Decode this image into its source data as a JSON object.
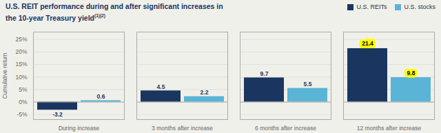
{
  "chart_data": {
    "type": "bar",
    "title": "U.S. REIT performance during and after significant increases in the 10-year Treasury yield",
    "annotations": [
      "(1)(2)"
    ],
    "categories": [
      "During increase",
      "3 months after increase",
      "6 months after increase",
      "12 months after increase"
    ],
    "series": [
      {
        "name": "U.S. REITs",
        "color": "#1a3560",
        "values": [
          -3.2,
          4.5,
          9.7,
          21.4
        ]
      },
      {
        "name": "U.S. stocks",
        "color": "#5ab4d6",
        "values": [
          0.6,
          2.2,
          5.5,
          9.8
        ]
      }
    ],
    "ylabel": "Cumulative return",
    "ylim": [
      -7,
      28
    ],
    "yticks": [
      {
        "value": -5,
        "label": "-5%"
      },
      {
        "value": 0,
        "label": "0%"
      },
      {
        "value": 5,
        "label": "5%"
      },
      {
        "value": 10,
        "label": "10%"
      },
      {
        "value": 15,
        "label": "15%"
      },
      {
        "value": 20,
        "label": "20%"
      },
      {
        "value": 25,
        "label": "25%"
      }
    ],
    "grid": true,
    "legend": "top",
    "data_labels": true
  }
}
